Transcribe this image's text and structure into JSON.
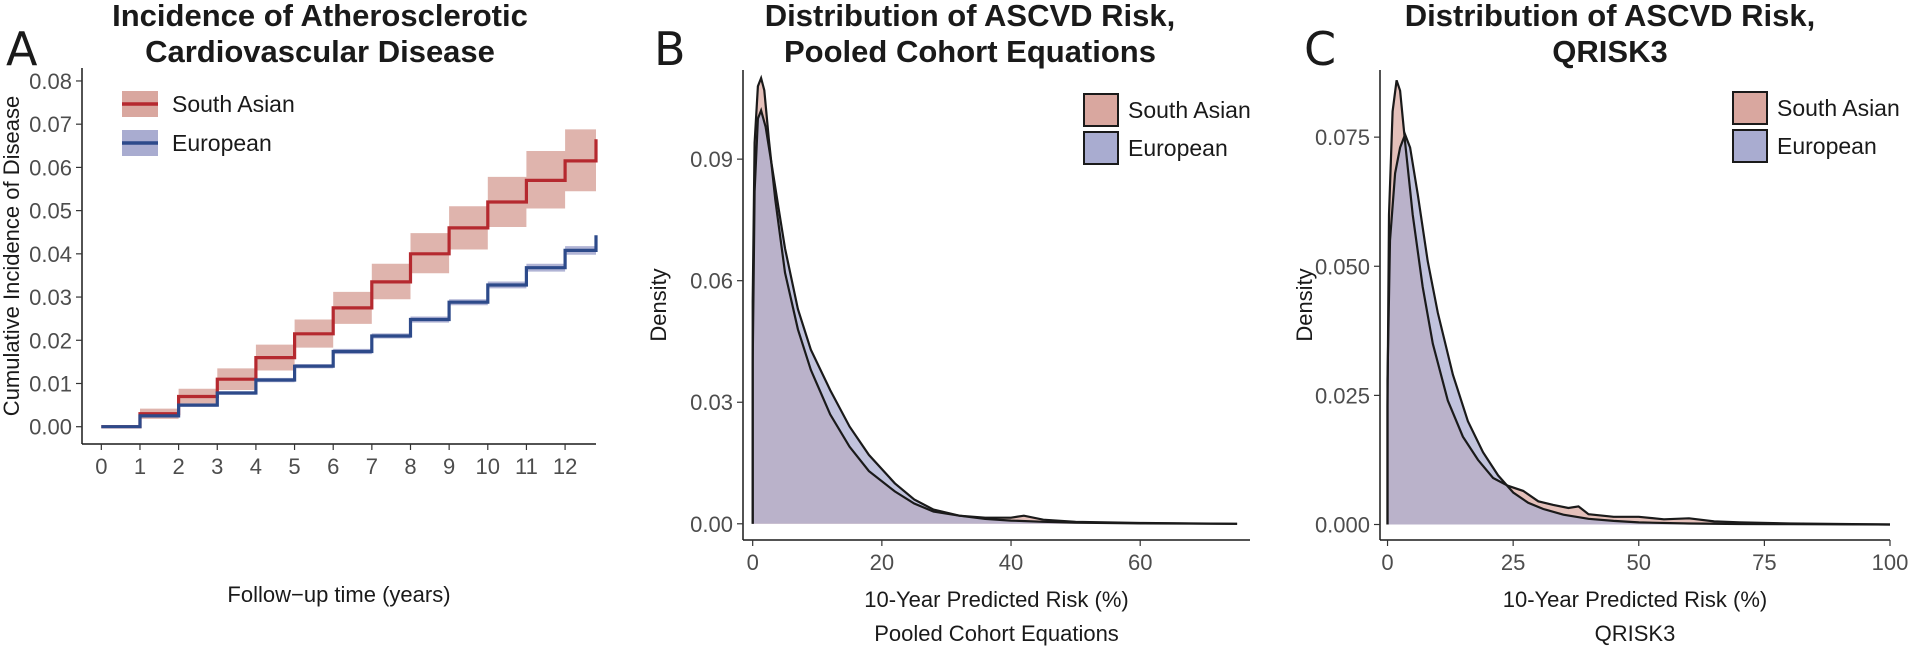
{
  "colors": {
    "south_asian_line": "#b5292f",
    "south_asian_band": "#d9a79f",
    "european_line": "#2d4a8a",
    "european_band": "#a9acd0",
    "overlap_fill": "#9a7f99"
  },
  "panel_labels": [
    "A",
    "B",
    "C"
  ],
  "chart_data": [
    {
      "type": "line",
      "title": "Incidence of Atherosclerotic Cardiovascular Disease",
      "title_lines": [
        "Incidence of Atherosclerotic",
        "Cardiovascular Disease"
      ],
      "xlabel": "Follow−up time (years)",
      "ylabel": "Cumulative Incidence of Disease",
      "xlim": [
        -0.5,
        12.8
      ],
      "ylim": [
        -0.004,
        0.083
      ],
      "xticks": [
        0,
        1,
        2,
        3,
        4,
        5,
        6,
        7,
        8,
        9,
        10,
        11,
        12
      ],
      "yticks": [
        0.0,
        0.01,
        0.02,
        0.03,
        0.04,
        0.05,
        0.06,
        0.07,
        0.08
      ],
      "ytick_labels": [
        "0.00",
        "0.01",
        "0.02",
        "0.03",
        "0.04",
        "0.05",
        "0.06",
        "0.07",
        "0.08"
      ],
      "legend": [
        "South Asian",
        "European"
      ],
      "legend_position": "top-left",
      "series": [
        {
          "name": "South Asian",
          "x": [
            0,
            1,
            2,
            3,
            4,
            5,
            6,
            7,
            8,
            9,
            10,
            11,
            12,
            12.8
          ],
          "y": [
            0,
            0.003,
            0.007,
            0.011,
            0.016,
            0.0215,
            0.0275,
            0.0335,
            0.04,
            0.046,
            0.052,
            0.057,
            0.0615,
            0.0665
          ],
          "lower": [
            0,
            0.0018,
            0.0052,
            0.0085,
            0.013,
            0.0183,
            0.0238,
            0.0295,
            0.0355,
            0.041,
            0.0462,
            0.0505,
            0.0545,
            0.058
          ],
          "upper": [
            0,
            0.0042,
            0.0088,
            0.0135,
            0.019,
            0.0248,
            0.0312,
            0.0377,
            0.0448,
            0.051,
            0.0578,
            0.0638,
            0.0688,
            0.0755
          ]
        },
        {
          "name": "European",
          "x": [
            0,
            1,
            2,
            3,
            4,
            5,
            6,
            7,
            8,
            9,
            10,
            11,
            12,
            12.8
          ],
          "y": [
            0,
            0.0025,
            0.005,
            0.0078,
            0.0108,
            0.014,
            0.0174,
            0.021,
            0.0248,
            0.0288,
            0.0328,
            0.0368,
            0.0408,
            0.0443
          ],
          "lower": [
            0,
            0.0022,
            0.0046,
            0.0074,
            0.0103,
            0.0135,
            0.0168,
            0.0204,
            0.0241,
            0.0281,
            0.032,
            0.0359,
            0.0398,
            0.0432
          ],
          "upper": [
            0,
            0.0028,
            0.0054,
            0.0082,
            0.0113,
            0.0145,
            0.018,
            0.0216,
            0.0255,
            0.0295,
            0.0336,
            0.0377,
            0.0418,
            0.0454
          ]
        }
      ]
    },
    {
      "type": "area",
      "title": "Distribution of ASCVD Risk, Pooled Cohort Equations",
      "title_lines": [
        "Distribution of ASCVD Risk,",
        "Pooled Cohort Equations"
      ],
      "xlabel": "10-Year Predicted Risk (%)",
      "xlabel2": "Pooled Cohort Equations",
      "ylabel": "Density",
      "xlim": [
        -1.5,
        77
      ],
      "ylim": [
        -0.004,
        0.112
      ],
      "xticks": [
        0,
        20,
        40,
        60
      ],
      "yticks": [
        0,
        0.03,
        0.06,
        0.09
      ],
      "ytick_labels": [
        "0.00",
        "0.03",
        "0.06",
        "0.09"
      ],
      "legend": [
        "South Asian",
        "European"
      ],
      "legend_position": "top-right",
      "series": [
        {
          "name": "South Asian",
          "x": [
            0,
            0.3,
            0.8,
            1.3,
            1.8,
            2.5,
            3.5,
            5,
            7,
            9,
            12,
            15,
            18,
            22,
            25,
            28,
            32,
            36,
            40,
            42,
            45,
            50,
            60,
            75
          ],
          "y": [
            0.055,
            0.094,
            0.108,
            0.11,
            0.107,
            0.095,
            0.08,
            0.062,
            0.048,
            0.038,
            0.027,
            0.019,
            0.013,
            0.008,
            0.005,
            0.003,
            0.002,
            0.0015,
            0.0015,
            0.002,
            0.001,
            0.0005,
            0.0002,
            0
          ]
        },
        {
          "name": "European",
          "x": [
            0,
            0.3,
            0.8,
            1.3,
            2,
            3,
            4,
            5,
            7,
            9,
            12,
            15,
            18,
            22,
            25,
            28,
            32,
            36,
            40,
            45,
            50,
            60,
            75
          ],
          "y": [
            0.04,
            0.082,
            0.1,
            0.102,
            0.098,
            0.088,
            0.078,
            0.068,
            0.053,
            0.043,
            0.033,
            0.024,
            0.017,
            0.01,
            0.006,
            0.0035,
            0.002,
            0.0012,
            0.0008,
            0.0005,
            0.0003,
            0.0001,
            0
          ]
        }
      ]
    },
    {
      "type": "area",
      "title": "Distribution of ASCVD Risk, QRISK3",
      "title_lines": [
        "Distribution of ASCVD Risk,",
        "QRISK3"
      ],
      "xlabel": "10-Year Predicted Risk (%)",
      "xlabel2": "QRISK3",
      "ylabel": "Density",
      "xlim": [
        -1.5,
        100
      ],
      "ylim": [
        -0.003,
        0.088
      ],
      "xticks": [
        0,
        25,
        50,
        75,
        100
      ],
      "yticks": [
        0,
        0.025,
        0.05,
        0.075
      ],
      "ytick_labels": [
        "0.000",
        "0.025",
        "0.050",
        "0.075"
      ],
      "legend": [
        "South Asian",
        "European"
      ],
      "legend_position": "top-right",
      "series": [
        {
          "name": "South Asian",
          "x": [
            0,
            0.3,
            1,
            1.8,
            2.5,
            3.5,
            5,
            7,
            9,
            12,
            15,
            18,
            21,
            24,
            27,
            30,
            33,
            36,
            38,
            40,
            45,
            50,
            55,
            60,
            65,
            70,
            80,
            90,
            100
          ],
          "y": [
            0.023,
            0.06,
            0.08,
            0.086,
            0.084,
            0.074,
            0.06,
            0.046,
            0.035,
            0.024,
            0.017,
            0.0125,
            0.009,
            0.0075,
            0.0065,
            0.0045,
            0.0038,
            0.0032,
            0.0035,
            0.002,
            0.0015,
            0.0015,
            0.001,
            0.0012,
            0.0006,
            0.0004,
            0.0002,
            0.0001,
            0
          ]
        },
        {
          "name": "European",
          "x": [
            0,
            0.5,
            1.5,
            2.5,
            3.5,
            4.5,
            6,
            8,
            10,
            13,
            16,
            19,
            22,
            25,
            28,
            31,
            35,
            40,
            45,
            50,
            60,
            70,
            80,
            100
          ],
          "y": [
            0.028,
            0.055,
            0.068,
            0.073,
            0.0755,
            0.073,
            0.064,
            0.051,
            0.041,
            0.029,
            0.02,
            0.014,
            0.0095,
            0.0062,
            0.0042,
            0.003,
            0.0019,
            0.0011,
            0.0007,
            0.0004,
            0.0002,
            0.0001,
            5e-05,
            0
          ]
        }
      ]
    }
  ]
}
